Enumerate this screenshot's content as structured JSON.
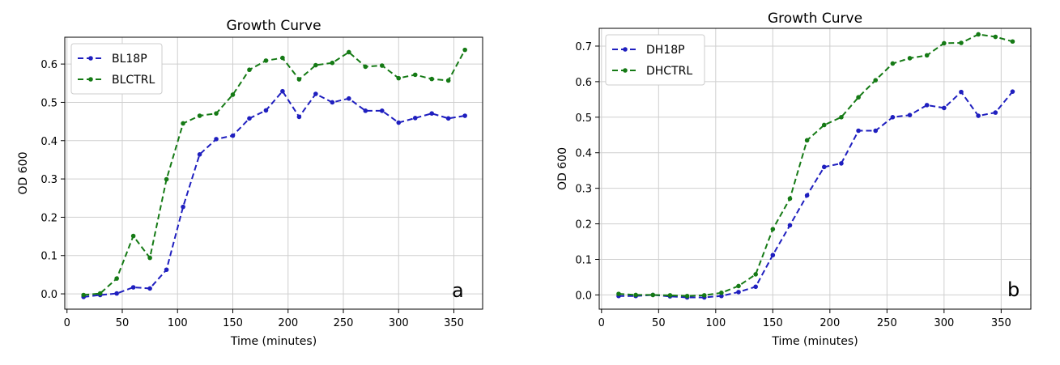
{
  "chart_data": [
    {
      "type": "line",
      "title": "Growth Curve",
      "xlabel": "Time (minutes)",
      "ylabel": "OD 600",
      "xlim": [
        -2,
        376
      ],
      "ylim": [
        -0.04,
        0.67
      ],
      "xticks": [
        0,
        50,
        100,
        150,
        200,
        250,
        300,
        350
      ],
      "xtick_labels": [
        "0",
        "50",
        "100",
        "150",
        "200",
        "250",
        "300",
        "350"
      ],
      "yticks": [
        0.0,
        0.1,
        0.2,
        0.3,
        0.4,
        0.5,
        0.6
      ],
      "ytick_labels": [
        "0.0",
        "0.1",
        "0.2",
        "0.3",
        "0.4",
        "0.5",
        "0.6"
      ],
      "grid": true,
      "legend_position": "top-left",
      "panel_label": "a",
      "x": [
        15,
        30,
        45,
        60,
        75,
        90,
        105,
        120,
        135,
        150,
        165,
        180,
        195,
        210,
        225,
        240,
        255,
        270,
        285,
        300,
        315,
        330,
        345,
        360
      ],
      "series": [
        {
          "name": "BL18P",
          "color": "#1f1fbf",
          "values": [
            -0.008,
            -0.003,
            0.001,
            0.017,
            0.014,
            0.063,
            0.227,
            0.364,
            0.404,
            0.413,
            0.458,
            0.479,
            0.529,
            0.462,
            0.522,
            0.5,
            0.51,
            0.478,
            0.478,
            0.447,
            0.459,
            0.471,
            0.458,
            0.465
          ]
        },
        {
          "name": "BLCTRL",
          "color": "#157a15",
          "values": [
            -0.003,
            0.001,
            0.04,
            0.151,
            0.094,
            0.299,
            0.445,
            0.465,
            0.471,
            0.52,
            0.585,
            0.609,
            0.616,
            0.56,
            0.597,
            0.603,
            0.631,
            0.593,
            0.596,
            0.563,
            0.572,
            0.561,
            0.557,
            0.637
          ]
        }
      ]
    },
    {
      "type": "line",
      "title": "Growth Curve",
      "xlabel": "Time (minutes)",
      "ylabel": "OD 600",
      "xlim": [
        -2,
        376
      ],
      "ylim": [
        -0.04,
        0.75
      ],
      "xticks": [
        0,
        50,
        100,
        150,
        200,
        250,
        300,
        350
      ],
      "xtick_labels": [
        "0",
        "50",
        "100",
        "150",
        "200",
        "250",
        "300",
        "350"
      ],
      "yticks": [
        0.0,
        0.1,
        0.2,
        0.3,
        0.4,
        0.5,
        0.6,
        0.7
      ],
      "ytick_labels": [
        "0.0",
        "0.1",
        "0.2",
        "0.3",
        "0.4",
        "0.5",
        "0.6",
        "0.7"
      ],
      "grid": true,
      "legend_position": "top-left",
      "panel_label": "b",
      "x": [
        15,
        30,
        45,
        60,
        75,
        90,
        105,
        120,
        135,
        150,
        165,
        180,
        195,
        210,
        225,
        240,
        255,
        270,
        285,
        300,
        315,
        330,
        345,
        360
      ],
      "series": [
        {
          "name": "DH18P",
          "color": "#1f1fbf",
          "values": [
            -0.003,
            -0.003,
            0.0,
            -0.004,
            -0.007,
            -0.007,
            -0.003,
            0.008,
            0.023,
            0.112,
            0.196,
            0.28,
            0.36,
            0.37,
            0.462,
            0.462,
            0.5,
            0.506,
            0.534,
            0.526,
            0.571,
            0.504,
            0.513,
            0.572
          ]
        },
        {
          "name": "DHCTRL",
          "color": "#157a15",
          "values": [
            0.003,
            0.0,
            0.0,
            -0.001,
            -0.003,
            -0.001,
            0.006,
            0.025,
            0.058,
            0.185,
            0.271,
            0.435,
            0.478,
            0.5,
            0.556,
            0.604,
            0.651,
            0.666,
            0.674,
            0.708,
            0.709,
            0.733,
            0.726,
            0.713
          ]
        }
      ]
    }
  ]
}
